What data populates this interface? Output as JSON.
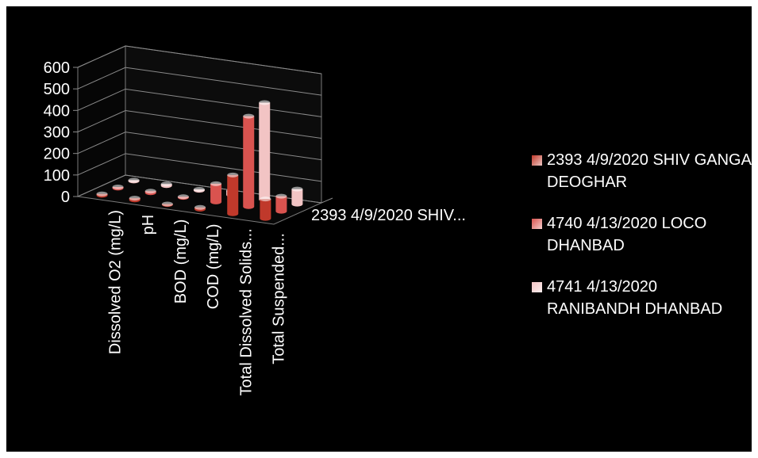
{
  "chart_data": {
    "type": "bar",
    "style": "3d-cylinder",
    "categories": [
      "Dissolved O2 (mg/L)",
      "pH",
      "BOD (mg/L)",
      "COD (mg/L)",
      "Total Dissolved Solids...",
      "Total Suspended..."
    ],
    "depth_axis_label": "2393 4/9/2020 SHIV...",
    "yticks": [
      "0",
      "100",
      "200",
      "300",
      "400",
      "500",
      "600"
    ],
    "ylim": [
      0,
      600
    ],
    "series": [
      {
        "name": "2393 4/9/2020 SHIV GANGA DEOGHAR",
        "color": "#c0392b",
        "values": [
          6,
          7.8,
          2,
          8,
          180,
          90
        ]
      },
      {
        "name": "4740 4/13/2020 LOCO DHANBAD",
        "color": "#d9534f",
        "values": [
          5,
          7.5,
          3,
          85,
          420,
          70
        ]
      },
      {
        "name": "4741 4/13/2020 RANIBANDH DHANBAD",
        "color": "#f2c4c4",
        "values": [
          4,
          7.2,
          4,
          20,
          450,
          70
        ]
      }
    ],
    "legend_position": "right",
    "grid": true
  }
}
